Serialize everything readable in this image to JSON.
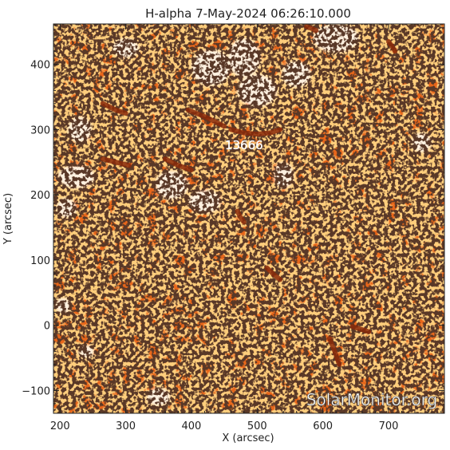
{
  "title": "H-alpha  7-May-2024 06:26:10.000",
  "x_axis": {
    "label": "X (arcsec)",
    "range": [
      190,
      785
    ],
    "ticks": [
      200,
      300,
      400,
      500,
      600,
      700
    ],
    "tick_labels": [
      "200",
      "300",
      "400",
      "500",
      "600",
      "700"
    ]
  },
  "y_axis": {
    "label": "Y (arcsec)",
    "range": [
      -135,
      462
    ],
    "ticks": [
      -100,
      0,
      100,
      200,
      300,
      400
    ],
    "tick_labels": [
      "−100",
      "0",
      "100",
      "200",
      "300",
      "400"
    ]
  },
  "region_label": {
    "text": "13666",
    "x": 480,
    "y": 270
  },
  "watermark": "SolarMonitor.org",
  "colors": {
    "background": "#e8661a",
    "bright": "#ff8c1c",
    "dark_mark": "#1a0a04",
    "plage": "#fff1e0",
    "filament": "#8a2a0a"
  },
  "filaments": [
    {
      "x": [
        265,
        285,
        300
      ],
      "y": [
        340,
        330,
        325
      ]
    },
    {
      "x": [
        395,
        420,
        440,
        450
      ],
      "y": [
        330,
        320,
        310,
        305
      ]
    },
    {
      "x": [
        460,
        480,
        500,
        520,
        535
      ],
      "y": [
        300,
        295,
        293,
        295,
        300
      ]
    },
    {
      "x": [
        265,
        285,
        305
      ],
      "y": [
        255,
        250,
        245
      ]
    },
    {
      "x": [
        360,
        380,
        400
      ],
      "y": [
        255,
        245,
        238
      ]
    },
    {
      "x": [
        470,
        475,
        480
      ],
      "y": [
        175,
        165,
        158
      ]
    },
    {
      "x": [
        515,
        525,
        535
      ],
      "y": [
        88,
        78,
        70
      ]
    },
    {
      "x": [
        610,
        618,
        625
      ],
      "y": [
        -20,
        -40,
        -60
      ]
    },
    {
      "x": [
        645,
        658,
        670
      ],
      "y": [
        -2,
        -6,
        -10
      ]
    },
    {
      "x": [
        700,
        705,
        710
      ],
      "y": [
        435,
        428,
        420
      ]
    },
    {
      "x": [
        575,
        583,
        590
      ],
      "y": [
        458,
        455,
        452
      ]
    }
  ],
  "plage_regions": [
    {
      "cx": 230,
      "cy": 300,
      "rx": 18,
      "ry": 20
    },
    {
      "cx": 225,
      "cy": 228,
      "rx": 28,
      "ry": 18
    },
    {
      "cx": 210,
      "cy": 180,
      "rx": 15,
      "ry": 15
    },
    {
      "cx": 370,
      "cy": 215,
      "rx": 25,
      "ry": 22
    },
    {
      "cx": 420,
      "cy": 190,
      "rx": 25,
      "ry": 18
    },
    {
      "cx": 430,
      "cy": 395,
      "rx": 30,
      "ry": 28
    },
    {
      "cx": 480,
      "cy": 410,
      "rx": 25,
      "ry": 30
    },
    {
      "cx": 500,
      "cy": 360,
      "rx": 30,
      "ry": 25
    },
    {
      "cx": 560,
      "cy": 385,
      "rx": 22,
      "ry": 20
    },
    {
      "cx": 620,
      "cy": 440,
      "rx": 35,
      "ry": 22
    },
    {
      "cx": 540,
      "cy": 230,
      "rx": 15,
      "ry": 20
    },
    {
      "cx": 300,
      "cy": 425,
      "rx": 20,
      "ry": 15
    },
    {
      "cx": 205,
      "cy": 30,
      "rx": 12,
      "ry": 12
    },
    {
      "cx": 240,
      "cy": -40,
      "rx": 12,
      "ry": 10
    },
    {
      "cx": 350,
      "cy": -110,
      "rx": 18,
      "ry": 14
    },
    {
      "cx": 750,
      "cy": 280,
      "rx": 15,
      "ry": 15
    }
  ]
}
